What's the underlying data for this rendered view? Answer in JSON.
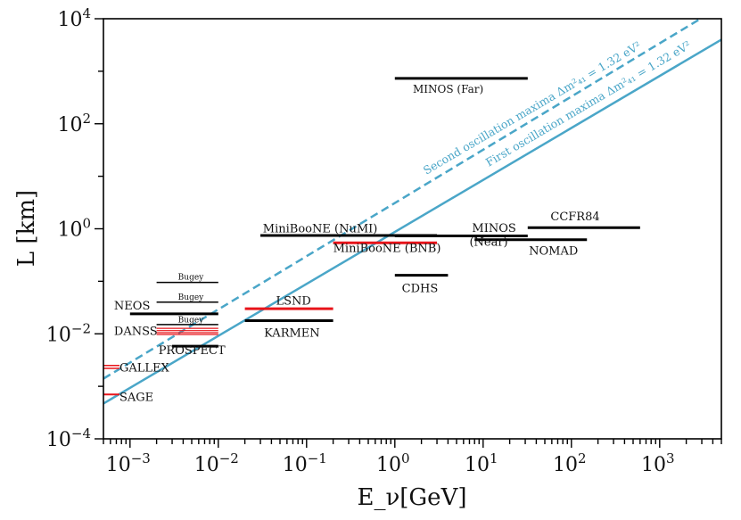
{
  "chart_data": {
    "type": "line",
    "title": "",
    "xlabel": "E_ν[GeV]",
    "ylabel": "L [km]",
    "xscale": "log",
    "yscale": "log",
    "xlim": [
      0.0005,
      5000
    ],
    "ylim": [
      0.0001,
      10000
    ],
    "x_ticks": [
      {
        "value": 0.001,
        "base": "10",
        "exp": "−3"
      },
      {
        "value": 0.01,
        "base": "10",
        "exp": "−2"
      },
      {
        "value": 0.1,
        "base": "10",
        "exp": "−1"
      },
      {
        "value": 1,
        "base": "10",
        "exp": "0"
      },
      {
        "value": 10,
        "base": "10",
        "exp": "1"
      },
      {
        "value": 100,
        "base": "10",
        "exp": "2"
      },
      {
        "value": 1000,
        "base": "10",
        "exp": "3"
      }
    ],
    "y_ticks": [
      {
        "value": 0.0001,
        "base": "10",
        "exp": "−4"
      },
      {
        "value": 0.01,
        "base": "10",
        "exp": "−2"
      },
      {
        "value": 1,
        "base": "10",
        "exp": "0"
      },
      {
        "value": 100,
        "base": "10",
        "exp": "2"
      },
      {
        "value": 10000,
        "base": "10",
        "exp": "4"
      }
    ],
    "oscillation_lines": [
      {
        "name": "First oscillation maxima Δm²₄₁ = 1.32 eV²",
        "style": "solid",
        "color": "#4aa6c8",
        "x": [
          0.0005,
          5000
        ],
        "y": [
          0.00047,
          4000
        ]
      },
      {
        "name": "Second oscillation maxima Δm²₄₁ = 1.32 eV²",
        "style": "dashed",
        "color": "#4aa6c8",
        "x": [
          0.0005,
          2900
        ],
        "y": [
          0.0014,
          10000
        ]
      }
    ],
    "osc_labels": {
      "first": "First oscillation maxima Δm²₄₁ = 1.32 eV²",
      "second": "Second oscillation maxima Δm²₄₁ = 1.32 eV²"
    },
    "experiments": [
      {
        "name": "MINOS (Far)",
        "xmin": 1.0,
        "xmax": 32,
        "L": 730,
        "color": "#000000",
        "width": 3,
        "label_x": 1.6,
        "label_y": 390,
        "label_size": 12
      },
      {
        "name": "MiniBooNE (NuMI)",
        "xmin": 0.03,
        "xmax": 3.0,
        "L": 0.745,
        "color": "#000000",
        "width": 3,
        "label_x": 0.032,
        "label_y": 0.85,
        "label_size": 13
      },
      {
        "name": "MiniBooNE (NuMI) segment",
        "xmin": 1.0,
        "xmax": 2.0,
        "L": 0.745,
        "color": "#000000",
        "width": 3
      },
      {
        "name": "MiniBooNE (BNB)",
        "xmin": 0.2,
        "xmax": 3.0,
        "L": 0.54,
        "color": "#e8141a",
        "width": 3,
        "label_x": 0.2,
        "label_y": 0.36,
        "label_size": 13
      },
      {
        "name": "MINOS",
        "xmin": 1.0,
        "xmax": 32,
        "L": 0.73,
        "color": "#000000",
        "width": 3,
        "label_x": 7.5,
        "label_y": 0.88,
        "label_size": 13
      },
      {
        "name": "(Near)",
        "xmin": 1.0,
        "xmax": 1.0,
        "L": 0.73,
        "color": "#000000",
        "width": 0,
        "label_x": 7.0,
        "label_y": 0.48,
        "label_size": 13
      },
      {
        "name": "CCFR84",
        "xmin": 32,
        "xmax": 600,
        "L": 1.05,
        "color": "#000000",
        "width": 3,
        "label_x": 58,
        "label_y": 1.45,
        "label_size": 13
      },
      {
        "name": "NOMAD",
        "xmin": 8,
        "xmax": 150,
        "L": 0.62,
        "color": "#000000",
        "width": 3,
        "label_x": 33,
        "label_y": 0.32,
        "label_size": 13
      },
      {
        "name": "CDHS",
        "xmin": 1.0,
        "xmax": 4.0,
        "L": 0.13,
        "color": "#000000",
        "width": 3,
        "label_x": 1.2,
        "label_y": 0.062,
        "label_size": 13
      },
      {
        "name": "LSND",
        "xmin": 0.02,
        "xmax": 0.2,
        "L": 0.03,
        "color": "#e8141a",
        "width": 3,
        "label_x": 0.045,
        "label_y": 0.036,
        "label_size": 13
      },
      {
        "name": "KARMEN",
        "xmin": 0.02,
        "xmax": 0.2,
        "L": 0.0178,
        "color": "#000000",
        "width": 3,
        "label_x": 0.033,
        "label_y": 0.0088,
        "label_size": 13
      },
      {
        "name": "Bugey",
        "xmin": 0.002,
        "xmax": 0.01,
        "L": 0.095,
        "color": "#000000",
        "width": 1.5,
        "label_x": 0.0035,
        "label_y": 0.107,
        "label_size": 9
      },
      {
        "name": "Bugey",
        "xmin": 0.002,
        "xmax": 0.01,
        "L": 0.04,
        "color": "#000000",
        "width": 1.5,
        "label_x": 0.0035,
        "label_y": 0.045,
        "label_size": 9
      },
      {
        "name": "NEOS",
        "xmin": 0.001,
        "xmax": 0.01,
        "L": 0.024,
        "color": "#000000",
        "width": 3,
        "label_x": 0.00066,
        "label_y": 0.029,
        "label_size": 13
      },
      {
        "name": "Bugey",
        "xmin": 0.002,
        "xmax": 0.01,
        "L": 0.015,
        "color": "#000000",
        "width": 1.5,
        "label_x": 0.0035,
        "label_y": 0.0166,
        "label_size": 9
      },
      {
        "name": "DANSS",
        "xmin": 0.002,
        "xmax": 0.01,
        "L": 0.0127,
        "color": "#e8141a",
        "width": 1.2,
        "label_x": 0.00066,
        "label_y": 0.0096,
        "label_size": 13
      },
      {
        "name": "DANSS",
        "xmin": 0.002,
        "xmax": 0.01,
        "L": 0.0115,
        "color": "#e8141a",
        "width": 1.2
      },
      {
        "name": "DANSS",
        "xmin": 0.002,
        "xmax": 0.01,
        "L": 0.0105,
        "color": "#e8141a",
        "width": 1.2
      },
      {
        "name": "DANSS",
        "xmin": 0.002,
        "xmax": 0.01,
        "L": 0.0097,
        "color": "#e8141a",
        "width": 1.2
      },
      {
        "name": "PROSPECT",
        "xmin": 0.003,
        "xmax": 0.01,
        "L": 0.0058,
        "color": "#000000",
        "width": 3,
        "label_x": 0.0021,
        "label_y": 0.0041,
        "label_size": 13
      },
      {
        "name": "GALLEX",
        "xmin": 0.0005,
        "xmax": 0.00076,
        "L": 0.0025,
        "color": "#e8141a",
        "width": 1.5,
        "label_x": 0.00076,
        "label_y": 0.0019,
        "label_size": 13
      },
      {
        "name": "GALLEX",
        "xmin": 0.0005,
        "xmax": 0.00076,
        "L": 0.0022,
        "color": "#e8141a",
        "width": 1.5
      },
      {
        "name": "SAGE",
        "xmin": 0.0005,
        "xmax": 0.00076,
        "L": 0.0007,
        "color": "#e8141a",
        "width": 2,
        "label_x": 0.00076,
        "label_y": 0.00053,
        "label_size": 13
      }
    ],
    "colors": {
      "black": "#000000",
      "red": "#e8141a",
      "blue": "#4aa6c8"
    }
  }
}
